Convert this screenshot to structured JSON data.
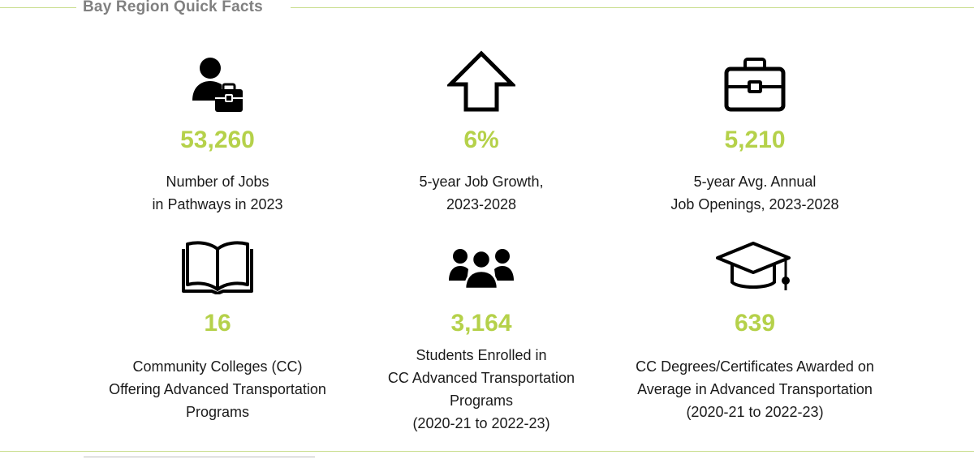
{
  "header": {
    "title": "Bay Region Quick Facts"
  },
  "colors": {
    "accent": "#b5d14a",
    "rule": "#c8dc8a",
    "title": "#808080",
    "text": "#1a1a1a"
  },
  "facts": [
    {
      "icon": "worker-briefcase-icon",
      "value": "53,260",
      "lines": [
        "Number of Jobs",
        "in Pathways in 2023"
      ]
    },
    {
      "icon": "up-arrow-icon",
      "value": "6%",
      "lines": [
        "5-year Job Growth,",
        "2023-2028"
      ]
    },
    {
      "icon": "briefcase-icon",
      "value": "5,210",
      "lines": [
        "5-year Avg. Annual",
        "Job Openings, 2023-2028"
      ]
    },
    {
      "icon": "open-book-icon",
      "value": "16",
      "lines": [
        "Community Colleges (CC)",
        "Offering Advanced Transportation",
        "Programs"
      ]
    },
    {
      "icon": "group-icon",
      "value": "3,164",
      "lines": [
        "Students Enrolled in",
        "CC Advanced Transportation",
        "Programs",
        "(2020-21 to 2022-23)"
      ]
    },
    {
      "icon": "graduation-cap-icon",
      "value": "639",
      "lines": [
        "CC Degrees/Certificates Awarded on",
        "Average in Advanced Transportation",
        "(2020-21 to 2022-23)"
      ]
    }
  ]
}
